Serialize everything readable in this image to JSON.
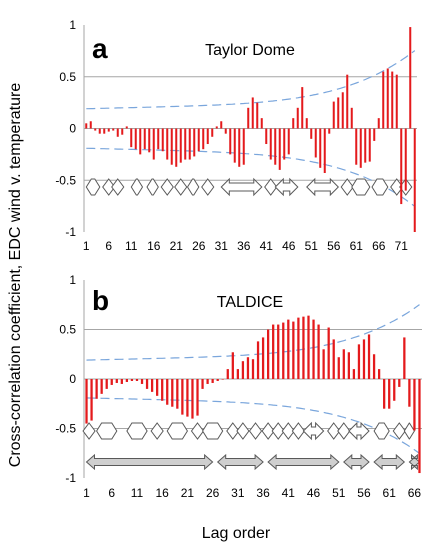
{
  "figure": {
    "ylabel": "Cross-correlation  coefficient, EDC wind v. temperature",
    "xlabel": "Lag order"
  },
  "colors": {
    "bars": "#e41a1c",
    "confidence": "#7aa6dc",
    "gridline": "#a6a6a6",
    "arrow_outline": "#595959",
    "arrow_fill_grey": "#cfcfcf"
  },
  "chart_data": [
    {
      "type": "bar",
      "panel_letter": "a",
      "title": "Taylor Dome",
      "x": [
        1,
        2,
        3,
        4,
        5,
        6,
        7,
        8,
        9,
        10,
        11,
        12,
        13,
        14,
        15,
        16,
        17,
        18,
        19,
        20,
        21,
        22,
        23,
        24,
        25,
        26,
        27,
        28,
        29,
        30,
        31,
        32,
        33,
        34,
        35,
        36,
        37,
        38,
        39,
        40,
        41,
        42,
        43,
        44,
        45,
        46,
        47,
        48,
        49,
        50,
        51,
        52,
        53,
        54,
        55,
        56,
        57,
        58,
        59,
        60,
        61,
        62,
        63,
        64,
        65,
        66,
        67,
        68,
        69,
        70,
        71,
        72,
        73,
        74
      ],
      "values": [
        0.05,
        0.07,
        -0.02,
        -0.05,
        -0.05,
        -0.03,
        -0.02,
        -0.08,
        -0.06,
        0.02,
        -0.18,
        -0.2,
        -0.25,
        -0.2,
        -0.23,
        -0.3,
        -0.2,
        -0.22,
        -0.3,
        -0.35,
        -0.37,
        -0.33,
        -0.3,
        -0.3,
        -0.27,
        -0.22,
        -0.2,
        -0.15,
        -0.08,
        0.02,
        0.07,
        -0.05,
        -0.25,
        -0.33,
        -0.37,
        -0.35,
        0.2,
        0.3,
        0.25,
        0.1,
        -0.15,
        -0.3,
        -0.35,
        -0.4,
        -0.3,
        -0.25,
        0.1,
        0.2,
        0.4,
        0.1,
        -0.1,
        -0.28,
        -0.38,
        -0.43,
        -0.05,
        0.26,
        0.3,
        0.35,
        0.52,
        0.2,
        -0.35,
        -0.38,
        -0.33,
        -0.32,
        -0.12,
        0.1,
        0.55,
        0.58,
        0.55,
        0.52,
        -0.73,
        -0.6,
        0.98,
        -1.0
      ],
      "confidence_band": "dashed blue 95% envelope, widening with lag",
      "xticks": [
        1,
        6,
        11,
        16,
        21,
        26,
        31,
        36,
        41,
        46,
        51,
        56,
        61,
        66,
        71
      ],
      "ylim": [
        -1,
        1
      ],
      "yticks": [
        "1",
        "0.5",
        "0",
        "-0.5",
        "-1"
      ],
      "gridlines": [
        0.5,
        -0.5
      ],
      "arrow_rows": [
        [
          {
            "kind": "hex",
            "from": 1,
            "to": 4
          },
          {
            "kind": "diamond",
            "at": 6
          },
          {
            "kind": "diamond",
            "at": 8
          },
          {
            "kind": "hex",
            "from": 11,
            "to": 13.5
          },
          {
            "kind": "hex",
            "from": 14.5,
            "to": 17
          },
          {
            "kind": "diamond",
            "at": 19
          },
          {
            "kind": "diamond",
            "at": 22
          },
          {
            "kind": "hex",
            "from": 23.5,
            "to": 26
          },
          {
            "kind": "diamond",
            "at": 28
          },
          {
            "kind": "arrow",
            "from": 31,
            "to": 40
          },
          {
            "kind": "diamond",
            "at": 42
          },
          {
            "kind": "arrow",
            "from": 43,
            "to": 48
          },
          {
            "kind": "arrow",
            "from": 50,
            "to": 57
          },
          {
            "kind": "diamond",
            "at": 59
          },
          {
            "kind": "hex",
            "from": 60,
            "to": 64
          },
          {
            "kind": "hex",
            "from": 64.5,
            "to": 68
          },
          {
            "kind": "diamond",
            "at": 70
          },
          {
            "kind": "diamond",
            "at": 72
          }
        ]
      ]
    },
    {
      "type": "bar",
      "panel_letter": "b",
      "title": "TALDICE",
      "x": [
        1,
        2,
        3,
        4,
        5,
        6,
        7,
        8,
        9,
        10,
        11,
        12,
        13,
        14,
        15,
        16,
        17,
        18,
        19,
        20,
        21,
        22,
        23,
        24,
        25,
        26,
        27,
        28,
        29,
        30,
        31,
        32,
        33,
        34,
        35,
        36,
        37,
        38,
        39,
        40,
        41,
        42,
        43,
        44,
        45,
        46,
        47,
        48,
        49,
        50,
        51,
        52,
        53,
        54,
        55,
        56,
        57,
        58,
        59,
        60,
        61,
        62,
        63,
        64,
        65,
        66,
        67
      ],
      "values": [
        -0.45,
        -0.42,
        -0.2,
        -0.15,
        -0.1,
        -0.06,
        -0.04,
        -0.05,
        -0.03,
        -0.02,
        -0.02,
        -0.05,
        -0.1,
        -0.13,
        -0.17,
        -0.22,
        -0.26,
        -0.28,
        -0.3,
        -0.36,
        -0.38,
        -0.4,
        -0.37,
        -0.1,
        -0.05,
        -0.04,
        -0.02,
        0.0,
        0.1,
        0.27,
        0.1,
        0.18,
        0.22,
        0.2,
        0.38,
        0.42,
        0.5,
        0.55,
        0.55,
        0.57,
        0.6,
        0.58,
        0.62,
        0.63,
        0.64,
        0.6,
        0.55,
        0.3,
        0.52,
        0.4,
        0.22,
        0.3,
        0.27,
        0.1,
        0.35,
        0.4,
        0.45,
        0.25,
        0.1,
        -0.3,
        -0.3,
        -0.22,
        -0.08,
        0.42,
        -0.28,
        -0.52,
        -0.95
      ],
      "confidence_band": "dashed blue 95% envelope, widening with lag",
      "xticks": [
        1,
        6,
        11,
        16,
        21,
        26,
        31,
        36,
        41,
        46,
        51,
        56,
        61,
        66
      ],
      "ylim": [
        -1,
        1
      ],
      "yticks": [
        "1",
        "0.5",
        "0",
        "-0.5",
        "-1"
      ],
      "gridlines": [
        0.5,
        -0.5
      ],
      "arrow_rows": [
        [
          {
            "kind": "diamond",
            "at": 1.5
          },
          {
            "kind": "hex",
            "from": 3,
            "to": 7
          },
          {
            "kind": "hex",
            "from": 9,
            "to": 13
          },
          {
            "kind": "diamond",
            "at": 15
          },
          {
            "kind": "hex",
            "from": 17,
            "to": 21
          },
          {
            "kind": "diamond",
            "at": 23
          },
          {
            "kind": "hex",
            "from": 24,
            "to": 28
          },
          {
            "kind": "diamond",
            "at": 30
          },
          {
            "kind": "diamond",
            "at": 32
          },
          {
            "kind": "diamond",
            "at": 34.5
          },
          {
            "kind": "diamond",
            "at": 37
          },
          {
            "kind": "diamond",
            "at": 39
          },
          {
            "kind": "diamond",
            "at": 41
          },
          {
            "kind": "diamond",
            "at": 43
          },
          {
            "kind": "arrow",
            "from": 44,
            "to": 48
          },
          {
            "kind": "diamond",
            "at": 50
          },
          {
            "kind": "diamond",
            "at": 52
          },
          {
            "kind": "arrow",
            "from": 53,
            "to": 57
          },
          {
            "kind": "hex",
            "from": 58,
            "to": 61
          },
          {
            "kind": "diamond",
            "at": 63
          },
          {
            "kind": "hex",
            "from": 64,
            "to": 66
          }
        ],
        [
          {
            "kind": "grey-arrow",
            "from": 1,
            "to": 26
          },
          {
            "kind": "grey-arrow",
            "from": 27,
            "to": 36
          },
          {
            "kind": "grey-arrow",
            "from": 37,
            "to": 51
          },
          {
            "kind": "grey-arrow",
            "from": 52,
            "to": 57
          },
          {
            "kind": "grey-arrow",
            "from": 58,
            "to": 64
          },
          {
            "kind": "grey-arrow",
            "from": 65,
            "to": 67
          }
        ]
      ]
    }
  ]
}
